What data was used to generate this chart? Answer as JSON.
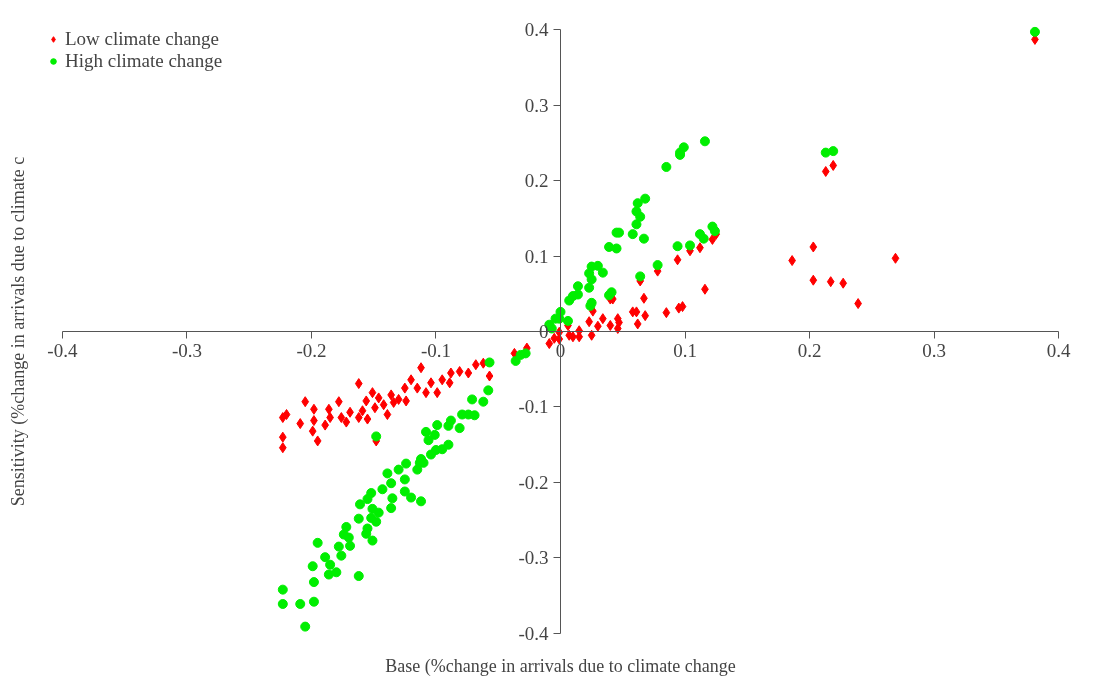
{
  "chart_data": {
    "type": "scatter",
    "xlabel": "Base (%change in arrivals due to climate change",
    "ylabel": "Sensitivity (%change in arrivals due to climate c",
    "xlim": [
      -0.4,
      0.4
    ],
    "ylim": [
      -0.4,
      0.4
    ],
    "xticks": [
      -0.4,
      -0.3,
      -0.2,
      -0.1,
      0,
      0.1,
      0.2,
      0.3,
      0.4
    ],
    "yticks": [
      -0.4,
      -0.3,
      -0.2,
      -0.1,
      0,
      0.1,
      0.2,
      0.3,
      0.4
    ],
    "legend": "top left",
    "series": [
      {
        "name": "Low climate change",
        "color": "#ff0000",
        "marker": "diamond",
        "x": [
          0.381,
          0.269,
          0.239,
          0.227,
          0.217,
          0.219,
          0.213,
          0.203,
          0.203,
          0.186,
          0.125,
          0.122,
          0.112,
          0.104,
          0.094,
          0.078,
          0.116,
          0.098,
          0.095,
          0.085,
          0.064,
          0.067,
          0.068,
          0.061,
          0.058,
          0.062,
          0.047,
          0.046,
          0.046,
          0.04,
          0.04,
          0.042,
          0.034,
          0.03,
          0.026,
          0.023,
          0.025,
          0.015,
          0.015,
          0.01,
          0.007,
          0.006,
          -0.001,
          -0.001,
          -0.005,
          -0.009,
          -0.223,
          -0.223,
          -0.223,
          -0.22,
          -0.209,
          -0.205,
          -0.198,
          -0.198,
          -0.199,
          -0.195,
          -0.189,
          -0.186,
          -0.185,
          -0.178,
          -0.176,
          -0.172,
          -0.169,
          -0.162,
          -0.162,
          -0.159,
          -0.156,
          -0.155,
          -0.151,
          -0.149,
          -0.148,
          -0.146,
          -0.142,
          -0.139,
          -0.136,
          -0.134,
          -0.13,
          -0.125,
          -0.124,
          -0.12,
          -0.115,
          -0.112,
          -0.108,
          -0.104,
          -0.099,
          -0.095,
          -0.089,
          -0.088,
          -0.081,
          -0.074,
          -0.068,
          -0.062,
          -0.057,
          -0.037,
          -0.027
        ],
        "values": [
          0.387,
          0.097,
          0.037,
          0.064,
          0.066,
          0.22,
          0.212,
          0.112,
          0.068,
          0.094,
          0.129,
          0.122,
          0.111,
          0.107,
          0.095,
          0.08,
          0.056,
          0.033,
          0.031,
          0.025,
          0.067,
          0.044,
          0.021,
          0.026,
          0.026,
          0.01,
          0.012,
          0.017,
          0.004,
          0.008,
          0.043,
          0.043,
          0.017,
          0.007,
          0.027,
          0.013,
          -0.005,
          0.001,
          -0.007,
          -0.007,
          -0.005,
          0.008,
          -0.001,
          -0.01,
          -0.009,
          -0.016,
          -0.154,
          -0.14,
          -0.114,
          -0.11,
          -0.122,
          -0.093,
          -0.103,
          -0.118,
          -0.132,
          -0.145,
          -0.124,
          -0.103,
          -0.114,
          -0.093,
          -0.114,
          -0.12,
          -0.107,
          -0.069,
          -0.114,
          -0.105,
          -0.092,
          -0.116,
          -0.081,
          -0.101,
          -0.145,
          -0.088,
          -0.097,
          -0.11,
          -0.084,
          -0.094,
          -0.09,
          -0.075,
          -0.092,
          -0.064,
          -0.075,
          -0.048,
          -0.081,
          -0.068,
          -0.081,
          -0.064,
          -0.068,
          -0.055,
          -0.053,
          -0.055,
          -0.044,
          -0.042,
          -0.059,
          -0.029,
          -0.022
        ]
      },
      {
        "name": "High climate change",
        "color": "#00ee00",
        "marker": "circle",
        "x": [
          0.381,
          0.213,
          0.219,
          0.116,
          0.099,
          0.096,
          0.096,
          0.085,
          0.068,
          0.062,
          0.061,
          0.064,
          0.061,
          0.058,
          0.067,
          0.047,
          0.045,
          0.039,
          0.045,
          0.122,
          0.124,
          0.112,
          0.115,
          0.104,
          0.094,
          0.078,
          0.064,
          0.034,
          0.03,
          0.025,
          0.023,
          0.025,
          0.023,
          0.014,
          0.014,
          0.01,
          0.007,
          0.039,
          0.041,
          0.025,
          0.024,
          0.006,
          0.0,
          -0.001,
          -0.004,
          -0.009,
          -0.007,
          -0.028,
          -0.032,
          -0.036,
          -0.057,
          -0.058,
          -0.062,
          -0.071,
          -0.069,
          -0.074,
          -0.079,
          -0.088,
          -0.09,
          -0.081,
          -0.099,
          -0.101,
          -0.108,
          -0.106,
          -0.09,
          -0.095,
          -0.1,
          -0.104,
          -0.112,
          -0.113,
          -0.11,
          -0.115,
          -0.124,
          -0.13,
          -0.125,
          -0.139,
          -0.136,
          -0.125,
          -0.12,
          -0.112,
          -0.143,
          -0.135,
          -0.136,
          -0.152,
          -0.155,
          -0.161,
          -0.151,
          -0.146,
          -0.152,
          -0.162,
          -0.148,
          -0.155,
          -0.172,
          -0.156,
          -0.151,
          -0.17,
          -0.174,
          -0.195,
          -0.169,
          -0.178,
          -0.176,
          -0.189,
          -0.185,
          -0.199,
          -0.18,
          -0.186,
          -0.162,
          -0.198,
          -0.223,
          -0.223,
          -0.209,
          -0.198,
          -0.205,
          -0.148
        ],
        "values": [
          0.397,
          0.237,
          0.239,
          0.252,
          0.244,
          0.237,
          0.234,
          0.218,
          0.176,
          0.17,
          0.159,
          0.152,
          0.142,
          0.129,
          0.123,
          0.131,
          0.131,
          0.112,
          0.11,
          0.139,
          0.133,
          0.129,
          0.123,
          0.114,
          0.113,
          0.088,
          0.073,
          0.078,
          0.087,
          0.086,
          0.077,
          0.069,
          0.058,
          0.06,
          0.049,
          0.047,
          0.041,
          0.048,
          0.052,
          0.038,
          0.034,
          0.014,
          0.026,
          0.017,
          0.017,
          0.009,
          0.004,
          -0.029,
          -0.031,
          -0.039,
          -0.041,
          -0.078,
          -0.093,
          -0.09,
          -0.111,
          -0.11,
          -0.11,
          -0.118,
          -0.125,
          -0.128,
          -0.124,
          -0.137,
          -0.133,
          -0.144,
          -0.15,
          -0.156,
          -0.157,
          -0.163,
          -0.169,
          -0.174,
          -0.174,
          -0.183,
          -0.175,
          -0.183,
          -0.196,
          -0.188,
          -0.201,
          -0.212,
          -0.22,
          -0.225,
          -0.209,
          -0.221,
          -0.234,
          -0.214,
          -0.222,
          -0.229,
          -0.235,
          -0.24,
          -0.247,
          -0.248,
          -0.252,
          -0.261,
          -0.259,
          -0.268,
          -0.277,
          -0.273,
          -0.269,
          -0.28,
          -0.284,
          -0.285,
          -0.297,
          -0.299,
          -0.309,
          -0.311,
          -0.319,
          -0.322,
          -0.324,
          -0.332,
          -0.342,
          -0.361,
          -0.361,
          -0.358,
          -0.391,
          -0.139
        ]
      }
    ]
  }
}
